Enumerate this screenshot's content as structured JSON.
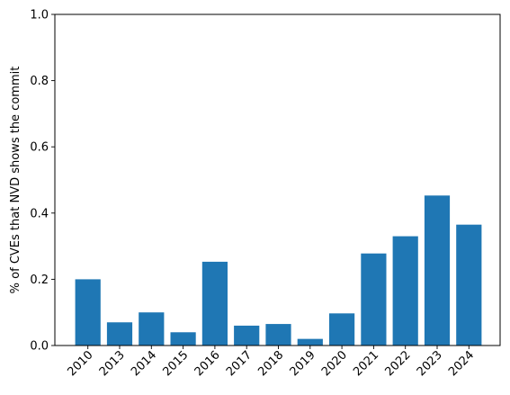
{
  "chart_data": {
    "type": "bar",
    "categories": [
      "2010",
      "2013",
      "2014",
      "2015",
      "2016",
      "2017",
      "2018",
      "2019",
      "2020",
      "2021",
      "2022",
      "2023",
      "2024"
    ],
    "values": [
      0.2,
      0.07,
      0.1,
      0.04,
      0.253,
      0.06,
      0.065,
      0.02,
      0.097,
      0.278,
      0.33,
      0.453,
      0.365
    ],
    "title": "",
    "xlabel": "",
    "ylabel": "% of CVEs that NVD shows the commit",
    "ylim": [
      0,
      1.0
    ],
    "yticks": [
      "0.0",
      "0.2",
      "0.4",
      "0.6",
      "0.8",
      "1.0"
    ],
    "xtick_rotation": 45,
    "bar_color": "#1f77b4",
    "grid": false,
    "legend": "none"
  }
}
